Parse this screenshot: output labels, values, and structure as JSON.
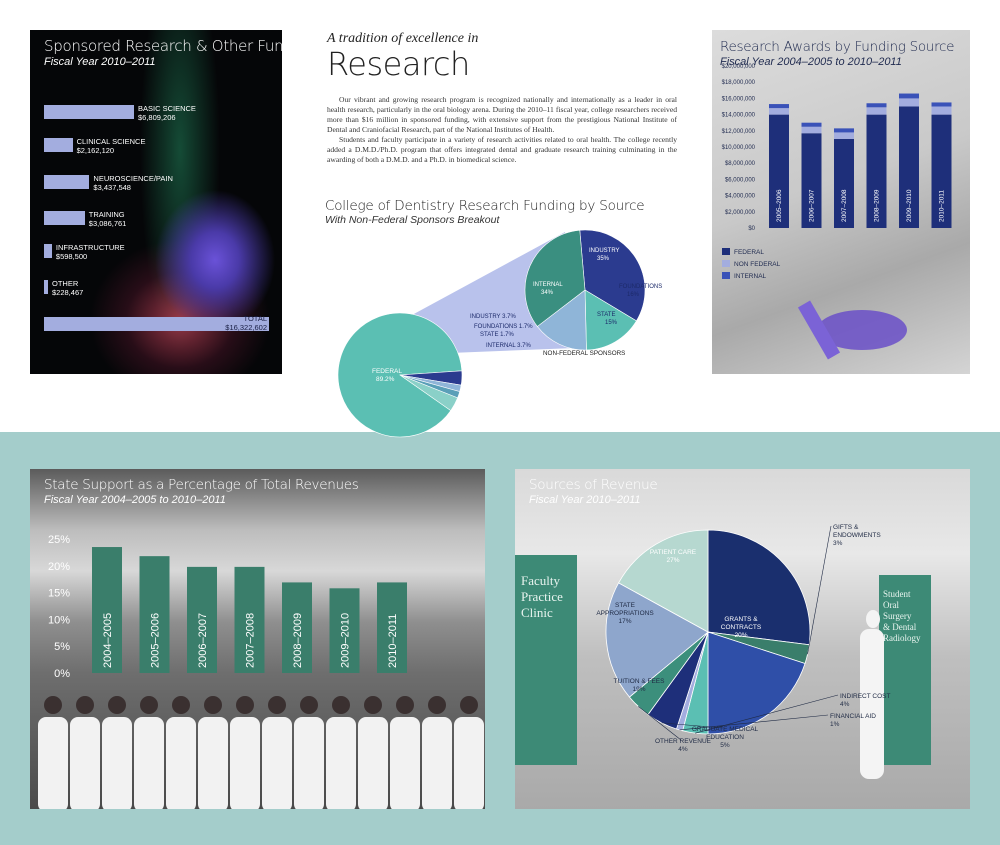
{
  "funding": {
    "title": "Sponsored Research & Other Funding",
    "subtitle": "Fiscal Year 2010–2011"
  },
  "research": {
    "kicker": "A tradition of excellence in",
    "title": "Research",
    "para1": "Our vibrant and growing research program is recognized nationally and internationally as a leader in oral health research, particularly in the oral biology arena. During the 2010–11 fiscal year, college researchers received more than $16 million in sponsored funding, with extensive support from the prestigious National Institute of Dental and Craniofacial Research, part of the National Institutes of Health.",
    "para2": "Students and faculty participate in a variety of research activities related to oral health. The college recently added a D.M.D./Ph.D. program that offers integrated dental and graduate research training culminating in the awarding of both a D.M.D. and a Ph.D. in biomedical science."
  },
  "dentistry": {
    "title": "College of Dentistry Research Funding by Source",
    "subtitle": "With Non-Federal Sponsors Breakout",
    "nonfederal_label": "NON-FEDERAL SPONSORS"
  },
  "awards": {
    "title": "Research Awards by Funding Source",
    "subtitle": "Fiscal Year 2004–2005 to 2010–2011"
  },
  "state": {
    "title": "State Support as a Percentage of Total Revenues",
    "subtitle": "Fiscal Year 2004–2005 to 2010–2011"
  },
  "revenue": {
    "title": "Sources of Revenue",
    "subtitle": "Fiscal Year 2010–2011",
    "sign_left": [
      "Faculty",
      "Practice",
      "Clinic"
    ],
    "sign_right": [
      "Student",
      "Oral",
      "Surgery",
      "& Dental",
      "Radiology"
    ]
  },
  "colors": {
    "lavender": "#a3addf",
    "navy": "#1e2f7a",
    "teal": "#5bbfb3",
    "bar_green": "#3a7e6b"
  },
  "chart_data": [
    {
      "type": "bar",
      "orientation": "horizontal",
      "title": "Sponsored Research & Other Funding",
      "subtitle": "Fiscal Year 2010–2011",
      "categories": [
        "BASIC SCIENCE",
        "CLINICAL SCIENCE",
        "NEUROSCIENCE/PAIN",
        "TRAINING",
        "INFRASTRUCTURE",
        "OTHER",
        "TOTAL"
      ],
      "value_labels": [
        "$6,809,206",
        "$2,162,120",
        "$3,437,548",
        "$3,086,761",
        "$598,500",
        "$228,467",
        "$16,322,602"
      ],
      "values": [
        6809206,
        2162120,
        3437548,
        3086761,
        598500,
        228467,
        16322602
      ]
    },
    {
      "type": "pie",
      "title": "College of Dentistry Research Funding by Source",
      "subtitle": "With Non-Federal Sponsors Breakout",
      "labels": [
        "FEDERAL",
        "INDUSTRY",
        "FOUNDATIONS",
        "STATE",
        "INTERNAL"
      ],
      "value_labels": [
        "89.2%",
        "3.7%",
        "1.7%",
        "1.7%",
        "3.7%"
      ],
      "values": [
        89.2,
        3.7,
        1.7,
        1.7,
        3.7
      ],
      "breakout": {
        "name": "NON-FEDERAL SPONSORS",
        "labels": [
          "INDUSTRY",
          "FOUNDATIONS",
          "STATE",
          "INTERNAL"
        ],
        "value_labels": [
          "35%",
          "16%",
          "15%",
          "34%"
        ],
        "values": [
          35,
          16,
          15,
          34
        ]
      }
    },
    {
      "type": "bar",
      "stacked": true,
      "title": "Research Awards by Funding Source",
      "subtitle": "Fiscal Year 2004–2005 to 2010–2011",
      "categories": [
        "2005–2006",
        "2006–2007",
        "2007–2008",
        "2008–2009",
        "2009–2010",
        "2010–2011"
      ],
      "y_ticks": [
        "$20,000,000",
        "$18,000,000",
        "$16,000,000",
        "$14,000,000",
        "$12,000,000",
        "$10,000,000",
        "$8,000,000",
        "$6,000,000",
        "$4,000,000",
        "$2,000,000",
        "$0"
      ],
      "ylim": [
        0,
        20000000
      ],
      "series": [
        {
          "name": "FEDERAL",
          "values": [
            14000000,
            11700000,
            11000000,
            14000000,
            15000000,
            14000000
          ]
        },
        {
          "name": "NON FEDERAL",
          "values": [
            800000,
            800000,
            800000,
            900000,
            1000000,
            1000000
          ]
        },
        {
          "name": "INTERNAL",
          "values": [
            500000,
            500000,
            500000,
            500000,
            600000,
            500000
          ]
        }
      ],
      "legend": "bottom-left"
    },
    {
      "type": "bar",
      "title": "State Support as a Percentage of Total Revenues",
      "subtitle": "Fiscal Year 2004–2005 to 2010–2011",
      "categories": [
        "2004–2005",
        "2005–2006",
        "2006–2007",
        "2007–2008",
        "2008–2009",
        "2009–2010",
        "2010–2011"
      ],
      "values": [
        23.5,
        21.8,
        19.8,
        19.8,
        16.9,
        15.8,
        16.9
      ],
      "y_ticks": [
        "25%",
        "20%",
        "15%",
        "10%",
        "5%",
        "0%"
      ],
      "ylim": [
        0,
        25
      ]
    },
    {
      "type": "pie",
      "title": "Sources of Revenue",
      "subtitle": "Fiscal Year 2010–2011",
      "labels": [
        "PATIENT CARE",
        "GIFTS & ENDOWMENTS",
        "GRANTS & CONTRACTS",
        "INDIRECT COST",
        "FINANCIAL AID",
        "GRADUATE MEDICAL EDUCATION",
        "OTHER REVENUE",
        "TUITION & FEES",
        "STATE APPROPRIATIONS"
      ],
      "value_labels": [
        "27%",
        "3%",
        "20%",
        "4%",
        "1%",
        "5%",
        "4%",
        "19%",
        "17%"
      ],
      "values": [
        27,
        3,
        20,
        4,
        1,
        5,
        4,
        19,
        17
      ]
    }
  ]
}
